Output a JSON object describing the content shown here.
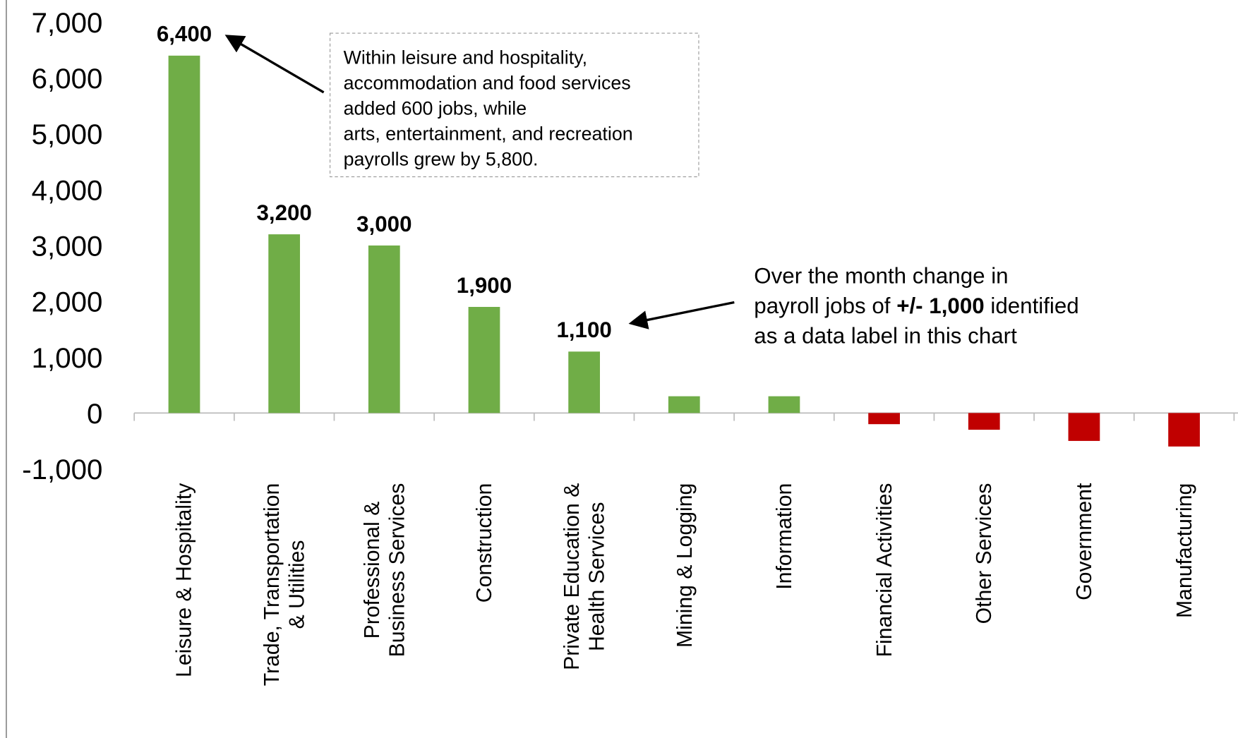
{
  "chart_data": {
    "type": "bar",
    "categories": [
      "Leisure & Hospitality",
      "Trade, Transportation\n& Utilities",
      "Professional &\nBusiness Services",
      "Construction",
      "Private Education &\nHealth Services",
      "Mining & Logging",
      "Information",
      "Financial Activities",
      "Other Services",
      "Government",
      "Manufacturing"
    ],
    "values": [
      6400,
      3200,
      3000,
      1900,
      1100,
      300,
      300,
      -200,
      -300,
      -500,
      -600
    ],
    "value_labels": [
      "6,400",
      "3,200",
      "3,000",
      "1,900",
      "1,100",
      null,
      null,
      null,
      null,
      null,
      null
    ],
    "colors": [
      "#70ad47",
      "#70ad47",
      "#70ad47",
      "#70ad47",
      "#70ad47",
      "#70ad47",
      "#70ad47",
      "#c00000",
      "#c00000",
      "#c00000",
      "#c00000"
    ],
    "ylim": [
      -1000,
      7000
    ],
    "yticks": [
      {
        "value": 7000,
        "label": "7,000"
      },
      {
        "value": 6000,
        "label": "6,000"
      },
      {
        "value": 5000,
        "label": "5,000"
      },
      {
        "value": 4000,
        "label": "4,000"
      },
      {
        "value": 3000,
        "label": "3,000"
      },
      {
        "value": 2000,
        "label": "2,000"
      },
      {
        "value": 1000,
        "label": "1,000"
      },
      0,
      {
        "value": -1000,
        "label": "-1,000"
      }
    ],
    "grid": false,
    "annotations": [
      {
        "lines": [
          "Within leisure and hospitality,",
          "accommodation and food services",
          "added 600 jobs, while",
          "arts, entertainment, and recreation",
          "payrolls grew by 5,800."
        ]
      },
      {
        "lines": [
          "Over the month change in",
          [
            "payroll jobs of ",
            "+/- 1,000",
            " identified"
          ],
          "as a data label in this chart"
        ]
      }
    ]
  }
}
